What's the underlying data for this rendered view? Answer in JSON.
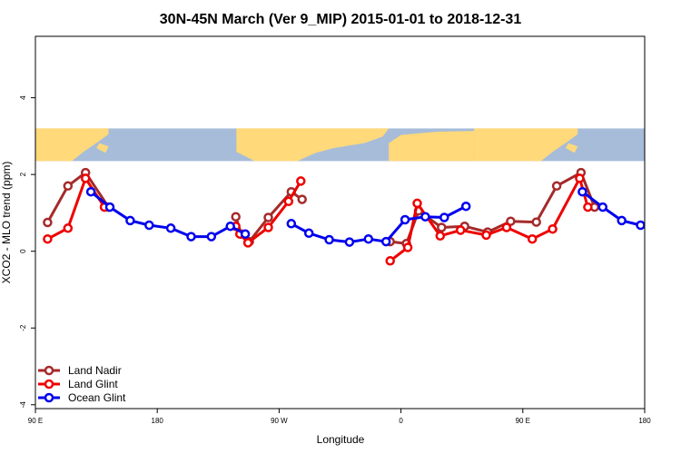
{
  "chart_data": {
    "type": "line",
    "title": "30N-45N March (Ver 9_MIP)   2015-01-01 to 2018-12-31",
    "xlabel": "Longitude",
    "ylabel": "XCO2 - MLO trend (ppm)",
    "xlim": [
      90,
      540
    ],
    "ylim": [
      -4.1,
      5.6
    ],
    "x_ticks": [
      {
        "value": 90,
        "label": "90 E"
      },
      {
        "value": 180,
        "label": "180"
      },
      {
        "value": 270,
        "label": "90 W"
      },
      {
        "value": 360,
        "label": "0"
      },
      {
        "value": 450,
        "label": "90 E"
      },
      {
        "value": 540,
        "label": "180"
      }
    ],
    "y_ticks": [
      {
        "value": -4,
        "label": "-4"
      },
      {
        "value": -2,
        "label": "-2"
      },
      {
        "value": 0,
        "label": "0"
      },
      {
        "value": 2,
        "label": "2"
      },
      {
        "value": 4,
        "label": "4"
      }
    ],
    "grid": false,
    "legend_position": "bottom-left",
    "map_band": {
      "y_from": 2.35,
      "y_to": 3.2,
      "ocean_color": "#a7bcd9",
      "land_color": "#ffd97a"
    },
    "series": [
      {
        "name": "Land Nadir",
        "color": "#a52a2a",
        "segments": [
          [
            [
              99,
              0.75
            ],
            [
              114,
              1.7
            ],
            [
              127,
              2.05
            ],
            [
              144,
              1.15
            ]
          ],
          [
            [
              238,
              0.9
            ],
            [
              242,
              0.45
            ],
            [
              248,
              0.25
            ],
            [
              262,
              0.88
            ],
            [
              279,
              1.55
            ],
            [
              287,
              1.35
            ]
          ],
          [
            [
              352,
              0.25
            ],
            [
              364,
              0.2
            ],
            [
              373,
              1.05
            ],
            [
              390,
              0.62
            ],
            [
              407,
              0.65
            ],
            [
              424,
              0.5
            ],
            [
              441,
              0.78
            ],
            [
              460,
              0.76
            ],
            [
              475,
              1.7
            ],
            [
              493,
              2.05
            ],
            [
              503,
              1.15
            ]
          ]
        ]
      },
      {
        "name": "Land Glint",
        "color": "#ee0000",
        "segments": [
          [
            [
              99,
              0.32
            ],
            [
              114,
              0.6
            ],
            [
              127,
              1.9
            ],
            [
              141,
              1.15
            ]
          ],
          [
            [
              238,
              0.65
            ],
            [
              241,
              0.45
            ],
            [
              247,
              0.22
            ],
            [
              262,
              0.62
            ],
            [
              277,
              1.3
            ],
            [
              286,
              1.83
            ]
          ],
          [
            [
              352,
              -0.25
            ],
            [
              365,
              0.1
            ],
            [
              372,
              1.25
            ],
            [
              389,
              0.4
            ],
            [
              404,
              0.55
            ],
            [
              423,
              0.42
            ],
            [
              438,
              0.62
            ],
            [
              457,
              0.32
            ],
            [
              472,
              0.58
            ],
            [
              492,
              1.9
            ],
            [
              498,
              1.15
            ]
          ]
        ]
      },
      {
        "name": "Ocean Glint",
        "color": "#0000ee",
        "segments": [
          [
            [
              131,
              1.55
            ],
            [
              145,
              1.15
            ],
            [
              160,
              0.8
            ],
            [
              174,
              0.68
            ],
            [
              190,
              0.6
            ],
            [
              205,
              0.38
            ],
            [
              220,
              0.38
            ],
            [
              234,
              0.65
            ],
            [
              245,
              0.45
            ]
          ],
          [
            [
              279,
              0.72
            ],
            [
              292,
              0.47
            ],
            [
              307,
              0.3
            ],
            [
              322,
              0.24
            ],
            [
              336,
              0.32
            ],
            [
              349,
              0.25
            ],
            [
              363,
              0.82
            ],
            [
              378,
              0.9
            ],
            [
              392,
              0.88
            ],
            [
              408,
              1.17
            ]
          ],
          [
            [
              494,
              1.55
            ],
            [
              509,
              1.15
            ],
            [
              523,
              0.8
            ],
            [
              537,
              0.68
            ]
          ]
        ]
      }
    ]
  }
}
